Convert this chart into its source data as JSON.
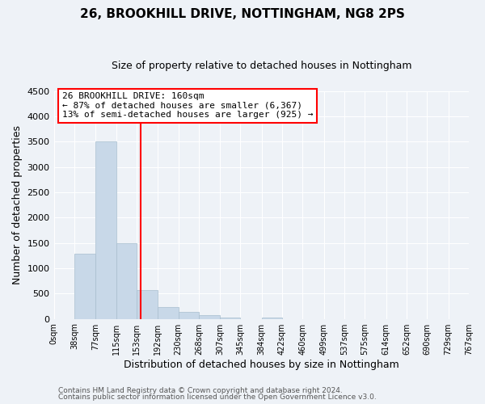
{
  "title": "26, BROOKHILL DRIVE, NOTTINGHAM, NG8 2PS",
  "subtitle": "Size of property relative to detached houses in Nottingham",
  "xlabel": "Distribution of detached houses by size in Nottingham",
  "ylabel": "Number of detached properties",
  "bar_edges": [
    0,
    38,
    77,
    115,
    153,
    192,
    230,
    268,
    307,
    345,
    384,
    422,
    460,
    499,
    537,
    575,
    614,
    652,
    690,
    729,
    767
  ],
  "bar_heights": [
    0,
    1280,
    3500,
    1500,
    570,
    240,
    130,
    70,
    30,
    0,
    20,
    0,
    0,
    0,
    0,
    0,
    0,
    0,
    0,
    0
  ],
  "bar_color": "#c8d8e8",
  "bar_edgecolor": "#a8bece",
  "property_line_x": 160,
  "property_line_color": "red",
  "ylim": [
    0,
    4500
  ],
  "yticks": [
    0,
    500,
    1000,
    1500,
    2000,
    2500,
    3000,
    3500,
    4000,
    4500
  ],
  "xtick_labels": [
    "0sqm",
    "38sqm",
    "77sqm",
    "115sqm",
    "153sqm",
    "192sqm",
    "230sqm",
    "268sqm",
    "307sqm",
    "345sqm",
    "384sqm",
    "422sqm",
    "460sqm",
    "499sqm",
    "537sqm",
    "575sqm",
    "614sqm",
    "652sqm",
    "690sqm",
    "729sqm",
    "767sqm"
  ],
  "annotation_title": "26 BROOKHILL DRIVE: 160sqm",
  "annotation_line1": "← 87% of detached houses are smaller (6,367)",
  "annotation_line2": "13% of semi-detached houses are larger (925) →",
  "annotation_box_color": "white",
  "annotation_box_edgecolor": "red",
  "footnote1": "Contains HM Land Registry data © Crown copyright and database right 2024.",
  "footnote2": "Contains public sector information licensed under the Open Government Licence v3.0.",
  "bg_color": "#eef2f7",
  "grid_color": "white",
  "title_fontsize": 11,
  "subtitle_fontsize": 9
}
